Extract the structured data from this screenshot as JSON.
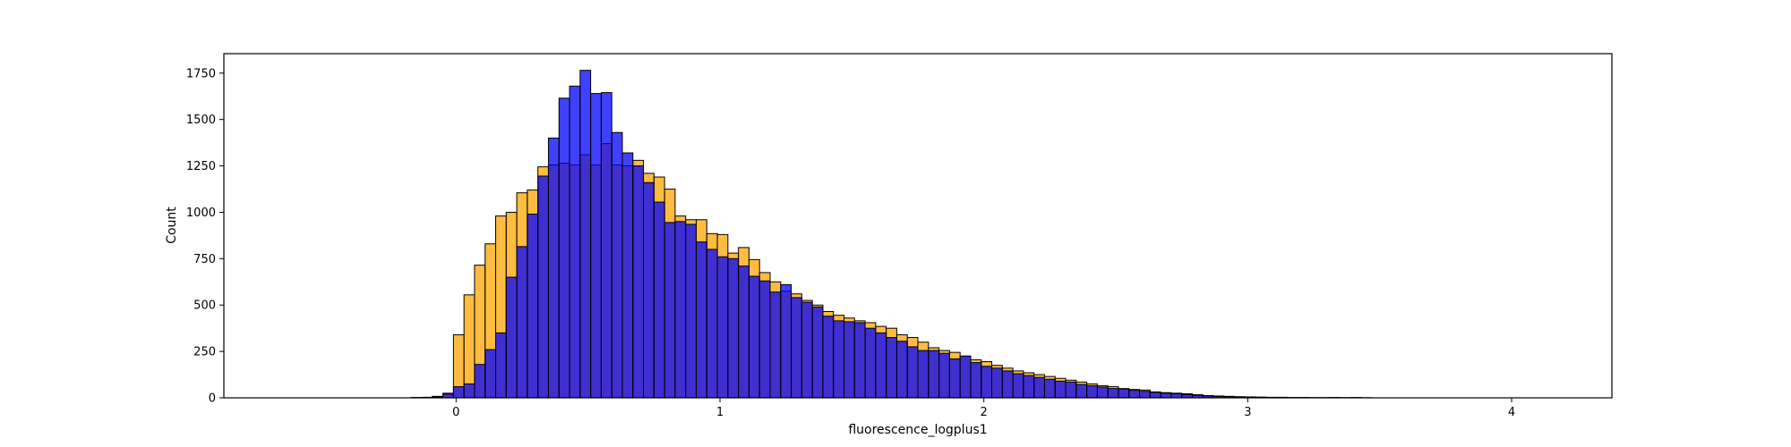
{
  "chart_data": {
    "type": "histogram",
    "title": "",
    "xlabel": "fluorescence_logplus1",
    "ylabel": "Count",
    "xlim": [
      -0.88,
      4.38
    ],
    "ylim": [
      0,
      1855
    ],
    "xticks": [
      0,
      1,
      2,
      3,
      4
    ],
    "yticks": [
      0,
      250,
      500,
      750,
      1000,
      1250,
      1500,
      1750
    ],
    "grid": false,
    "legend": "none",
    "series": [
      {
        "color": "#FFA500",
        "x_start": -0.65,
        "bin_width": 0.04,
        "values": [
          0,
          0,
          0,
          0,
          0,
          0,
          0,
          0,
          0,
          0,
          0,
          0,
          2,
          3,
          8,
          25,
          340,
          555,
          715,
          830,
          980,
          1000,
          1105,
          1120,
          1245,
          1255,
          1265,
          1255,
          1310,
          1255,
          1370,
          1255,
          1250,
          1280,
          1210,
          1190,
          1125,
          980,
          960,
          960,
          885,
          880,
          780,
          810,
          745,
          675,
          625,
          575,
          560,
          525,
          500,
          465,
          445,
          430,
          415,
          405,
          385,
          375,
          340,
          325,
          300,
          270,
          255,
          245,
          225,
          205,
          195,
          175,
          160,
          145,
          135,
          125,
          115,
          105,
          95,
          85,
          75,
          65,
          60,
          50,
          45,
          42,
          32,
          28,
          25,
          22,
          17,
          12,
          10,
          8,
          6,
          5,
          4,
          3,
          3,
          2,
          2,
          1,
          1,
          1,
          1,
          2,
          1,
          0,
          0,
          0,
          0,
          0,
          0,
          0,
          0,
          0,
          0,
          0,
          0
        ]
      },
      {
        "color": "#0000FF",
        "x_start": -0.65,
        "bin_width": 0.04,
        "values": [
          0,
          0,
          0,
          0,
          0,
          0,
          0,
          0,
          0,
          0,
          0,
          0,
          1,
          2,
          5,
          20,
          60,
          75,
          180,
          260,
          350,
          650,
          815,
          990,
          1195,
          1400,
          1615,
          1680,
          1765,
          1640,
          1645,
          1430,
          1320,
          1250,
          1160,
          1055,
          945,
          950,
          935,
          840,
          800,
          760,
          750,
          710,
          655,
          630,
          570,
          610,
          540,
          515,
          490,
          440,
          415,
          410,
          405,
          375,
          350,
          325,
          305,
          275,
          255,
          255,
          240,
          210,
          225,
          190,
          170,
          160,
          145,
          130,
          120,
          110,
          100,
          90,
          85,
          72,
          65,
          58,
          50,
          48,
          40,
          35,
          30,
          25,
          22,
          18,
          14,
          10,
          8,
          6,
          5,
          4,
          3,
          2,
          2,
          1,
          1,
          1,
          1,
          2,
          1,
          0,
          0,
          0,
          0,
          0,
          0,
          0,
          0,
          0,
          0,
          0,
          0
        ]
      }
    ]
  }
}
